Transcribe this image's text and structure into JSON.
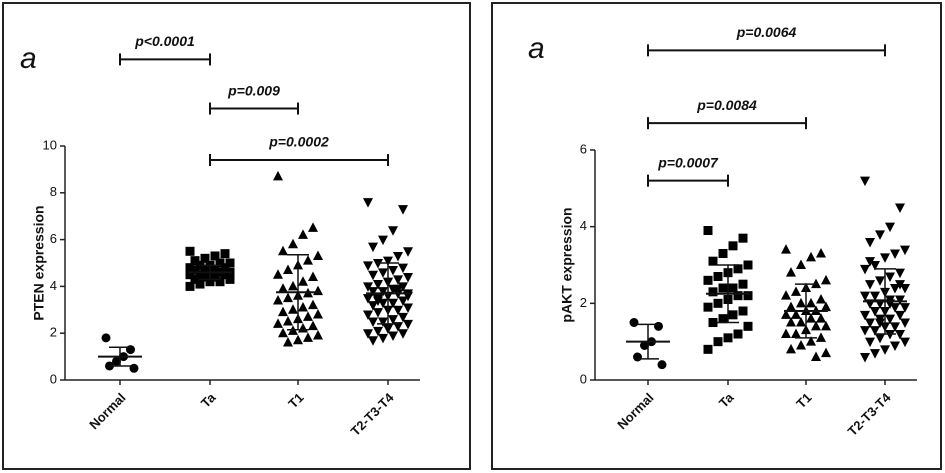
{
  "chart_data": [
    {
      "type": "strip",
      "panel_label": "a",
      "y_label": "PTEN expression",
      "color": "#000000",
      "ylim": [
        0,
        10
      ],
      "yticks": [
        0,
        2,
        4,
        6,
        8,
        10
      ],
      "groups": [
        {
          "name": "Normal",
          "marker": "circle",
          "points": [
            1.8,
            1.3,
            1.0,
            0.8,
            0.6,
            0.5
          ],
          "mean": 1.0,
          "sd": 0.4
        },
        {
          "name": "Ta",
          "marker": "square",
          "points": [
            5.5,
            5.4,
            5.3,
            5.2,
            5.1,
            5.0,
            5.0,
            4.9,
            4.9,
            4.8,
            4.8,
            4.7,
            4.7,
            4.7,
            4.6,
            4.6,
            4.6,
            4.5,
            4.5,
            4.5,
            4.4,
            4.4,
            4.3,
            4.3,
            4.2,
            4.2,
            4.1,
            4.0
          ],
          "mean": 4.6,
          "sd": 0.3
        },
        {
          "name": "T1",
          "marker": "triangle-up",
          "points": [
            8.7,
            6.5,
            6.2,
            5.8,
            5.5,
            5.3,
            5.1,
            4.9,
            4.7,
            4.5,
            4.4,
            4.2,
            4.0,
            3.9,
            3.8,
            3.7,
            3.6,
            3.5,
            3.4,
            3.2,
            3.1,
            3.0,
            2.9,
            2.8,
            2.7,
            2.6,
            2.5,
            2.4,
            2.3,
            2.2,
            2.1,
            2.0,
            1.9,
            1.8,
            1.7,
            1.6
          ],
          "mean": 3.75,
          "sd": 1.6
        },
        {
          "name": "T2-T3-T4",
          "marker": "triangle-down",
          "points": [
            7.6,
            7.3,
            6.4,
            6.0,
            5.7,
            5.5,
            5.3,
            5.1,
            5.0,
            4.9,
            4.8,
            4.7,
            4.6,
            4.5,
            4.4,
            4.3,
            4.2,
            4.1,
            4.0,
            4.0,
            3.9,
            3.8,
            3.8,
            3.7,
            3.7,
            3.6,
            3.5,
            3.5,
            3.4,
            3.3,
            3.3,
            3.2,
            3.1,
            3.0,
            3.0,
            2.9,
            2.8,
            2.7,
            2.6,
            2.5,
            2.5,
            2.4,
            2.3,
            2.2,
            2.1,
            2.0,
            2.0,
            1.9,
            1.8,
            1.7,
            3.6,
            3.9,
            4.2,
            3.4
          ],
          "mean": 3.7,
          "sd": 1.3
        }
      ],
      "annotations": [
        {
          "label": "p<0.0001",
          "from": 0,
          "to": 1,
          "y": 13.7
        },
        {
          "label": "p=0.009",
          "from": 1,
          "to": 2,
          "y": 11.6
        },
        {
          "label": "p=0.0002",
          "from": 1,
          "to": 3,
          "y": 9.4
        }
      ]
    },
    {
      "type": "strip",
      "panel_label": "a",
      "y_label": "pAKT expression",
      "color": "#000000",
      "ylim": [
        0,
        6
      ],
      "yticks": [
        0,
        2,
        4,
        6
      ],
      "groups": [
        {
          "name": "Normal",
          "marker": "circle",
          "points": [
            1.5,
            1.4,
            1.0,
            0.9,
            0.6,
            0.4
          ],
          "mean": 1.0,
          "sd": 0.45
        },
        {
          "name": "Ta",
          "marker": "square",
          "points": [
            3.9,
            3.7,
            3.5,
            3.3,
            3.1,
            3.0,
            2.9,
            2.8,
            2.7,
            2.6,
            2.5,
            2.4,
            2.4,
            2.3,
            2.2,
            2.2,
            2.1,
            2.0,
            1.9,
            1.8,
            1.7,
            1.6,
            1.5,
            1.4,
            1.2,
            1.1,
            1.0,
            0.8
          ],
          "mean": 2.25,
          "sd": 0.75
        },
        {
          "name": "T1",
          "marker": "triangle-up",
          "points": [
            3.4,
            3.3,
            3.2,
            3.0,
            2.8,
            2.6,
            2.5,
            2.4,
            2.3,
            2.2,
            2.1,
            2.0,
            2.0,
            1.9,
            1.9,
            1.8,
            1.8,
            1.7,
            1.7,
            1.6,
            1.6,
            1.5,
            1.5,
            1.4,
            1.4,
            1.3,
            1.2,
            1.2,
            1.1,
            1.0,
            0.9,
            0.8,
            0.7,
            0.6
          ],
          "mean": 1.8,
          "sd": 0.7
        },
        {
          "name": "T2-T3-T4",
          "marker": "triangle-down",
          "points": [
            5.2,
            4.5,
            4.0,
            3.8,
            3.6,
            3.4,
            3.3,
            3.2,
            3.0,
            2.9,
            2.8,
            2.7,
            2.6,
            2.5,
            2.4,
            2.4,
            2.3,
            2.2,
            2.2,
            2.1,
            2.1,
            2.0,
            2.0,
            1.9,
            1.9,
            1.8,
            1.8,
            1.7,
            1.7,
            1.6,
            1.6,
            1.5,
            1.5,
            1.4,
            1.4,
            1.3,
            1.3,
            1.2,
            1.2,
            1.1,
            1.0,
            1.0,
            0.9,
            0.8,
            0.7,
            0.6,
            2.5,
            2.0,
            1.5,
            3.1
          ],
          "mean": 2.05,
          "sd": 0.85
        }
      ],
      "annotations": [
        {
          "label": "p=0.0007",
          "from": 0,
          "to": 1,
          "y": 5.2
        },
        {
          "label": "p=0.0084",
          "from": 0,
          "to": 2,
          "y": 6.7
        },
        {
          "label": "p=0.0064",
          "from": 0,
          "to": 3,
          "y": 8.6
        }
      ]
    }
  ]
}
